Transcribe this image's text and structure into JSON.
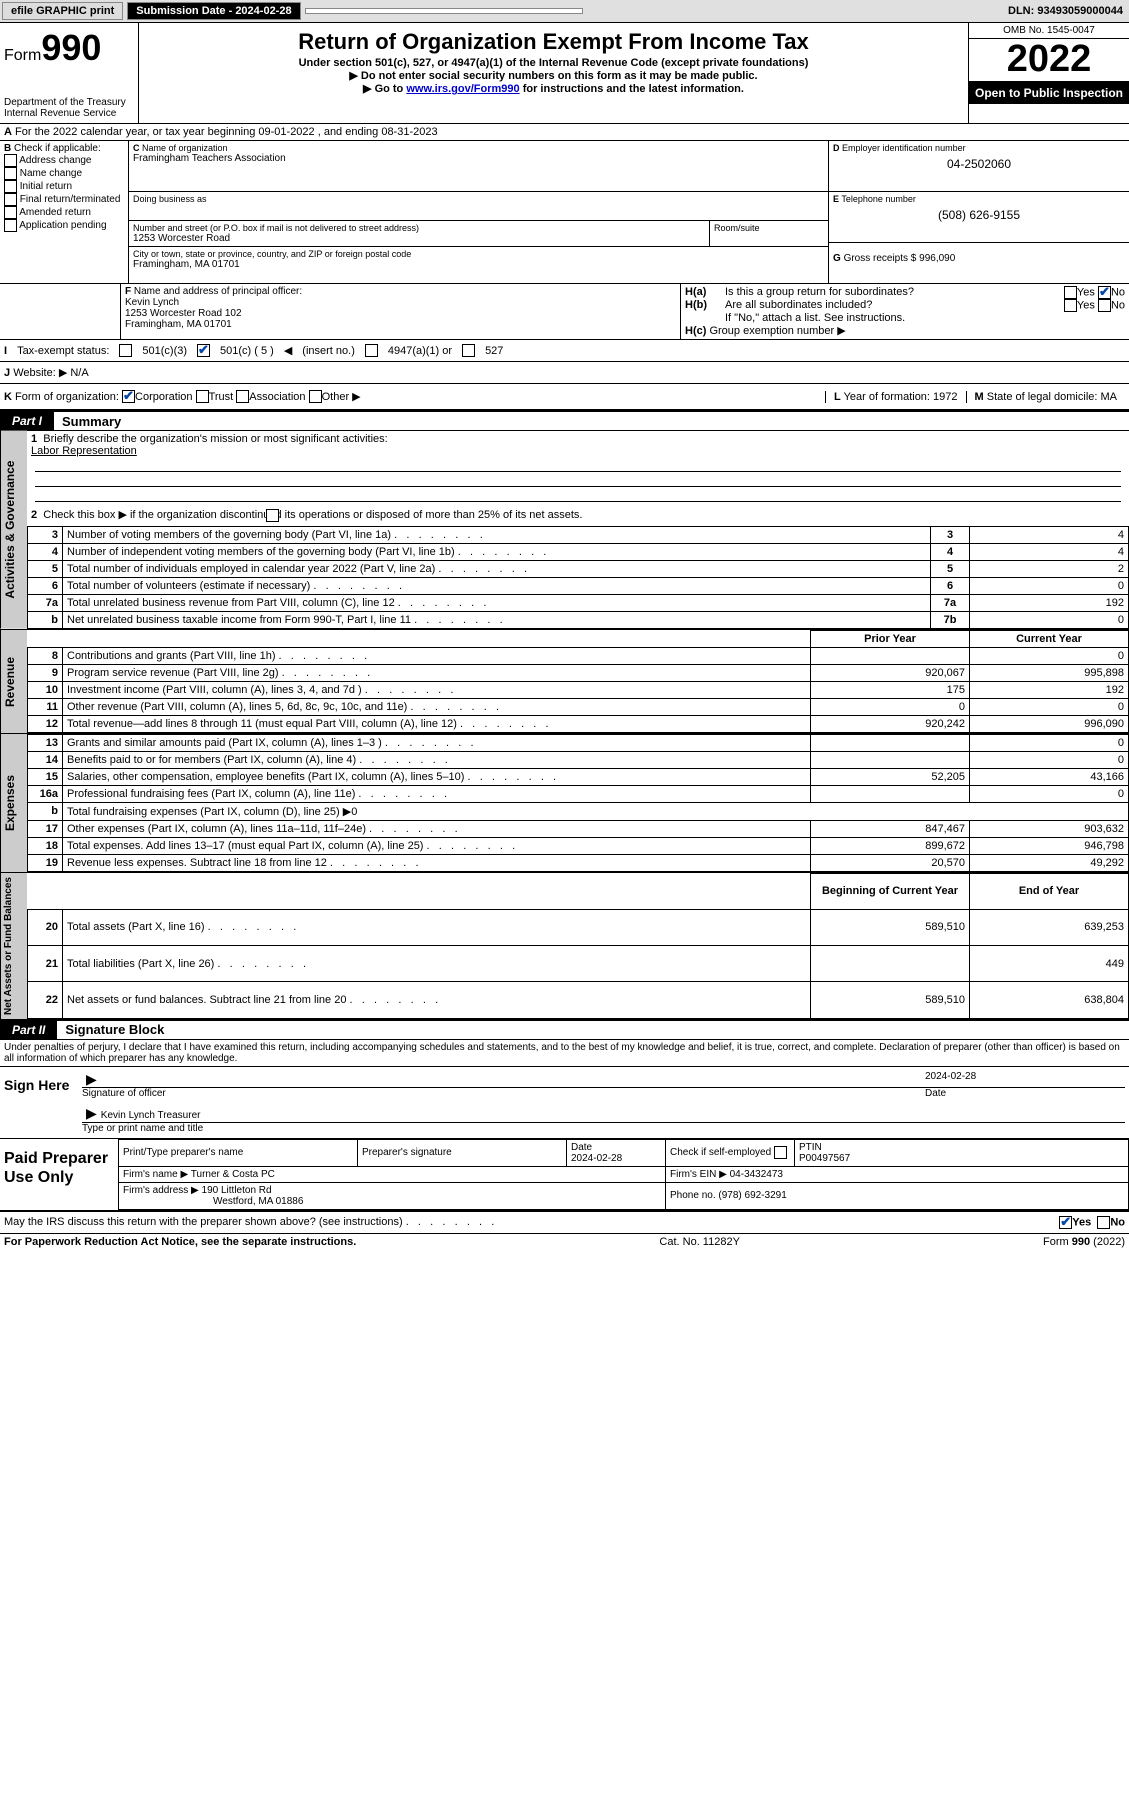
{
  "top": {
    "efile": "efile GRAPHIC print",
    "sub_label": "Submission Date - 2024-02-28",
    "dln": "DLN: 93493059000044"
  },
  "header": {
    "form_prefix": "Form",
    "form_num": "990",
    "dept": "Department of the Treasury",
    "irs": "Internal Revenue Service",
    "title": "Return of Organization Exempt From Income Tax",
    "sub": "Under section 501(c), 527, or 4947(a)(1) of the Internal Revenue Code (except private foundations)",
    "instr1": "Do not enter social security numbers on this form as it may be made public.",
    "instr2_pre": "Go to ",
    "instr2_link": "www.irs.gov/Form990",
    "instr2_post": " for instructions and the latest information.",
    "omb": "OMB No. 1545-0047",
    "year": "2022",
    "open": "Open to Public Inspection"
  },
  "a": {
    "text": "For the 2022 calendar year, or tax year beginning 09-01-2022   , and ending 08-31-2023"
  },
  "b": {
    "label": "Check if applicable:",
    "items": [
      "Address change",
      "Name change",
      "Initial return",
      "Final return/terminated",
      "Amended return",
      "Application pending"
    ]
  },
  "c": {
    "name_label": "Name of organization",
    "name": "Framingham Teachers Association",
    "dba_label": "Doing business as",
    "dba": "",
    "addr_label": "Number and street (or P.O. box if mail is not delivered to street address)",
    "room_label": "Room/suite",
    "addr": "1253 Worcester Road",
    "city_label": "City or town, state or province, country, and ZIP or foreign postal code",
    "city": "Framingham, MA  01701"
  },
  "d": {
    "label": "Employer identification number",
    "val": "04-2502060"
  },
  "e": {
    "label": "Telephone number",
    "val": "(508) 626-9155"
  },
  "g": {
    "label": "Gross receipts $",
    "val": "996,090"
  },
  "f": {
    "label": "Name and address of principal officer:",
    "name": "Kevin Lynch",
    "addr": "1253 Worcester Road 102",
    "city": "Framingham, MA  01701"
  },
  "h": {
    "a": "Is this a group return for subordinates?",
    "b": "Are all subordinates included?",
    "note": "If \"No,\" attach a list. See instructions.",
    "c": "Group exemption number ▶",
    "yes": "Yes",
    "no": "No"
  },
  "i": {
    "label": "Tax-exempt status:",
    "o1": "501(c)(3)",
    "o2_pre": "501(c) ( 5 )",
    "o2_post": "(insert no.)",
    "o3": "4947(a)(1) or",
    "o4": "527"
  },
  "j": {
    "label": "Website: ▶",
    "val": "N/A"
  },
  "k": {
    "label": "Form of organization:",
    "opts": [
      "Corporation",
      "Trust",
      "Association",
      "Other ▶"
    ]
  },
  "l": {
    "label": "Year of formation:",
    "val": "1972"
  },
  "m": {
    "label": "State of legal domicile:",
    "val": "MA"
  },
  "part1": {
    "tab": "Part I",
    "title": "Summary",
    "q1": "Briefly describe the organization's mission or most significant activities:",
    "mission": "Labor Representation",
    "q2": "Check this box ▶        if the organization discontinued its operations or disposed of more than 25% of its net assets.",
    "rows_single": [
      {
        "n": "3",
        "desc": "Number of voting members of the governing body (Part VI, line 1a)",
        "ln": "3",
        "val": "4"
      },
      {
        "n": "4",
        "desc": "Number of independent voting members of the governing body (Part VI, line 1b)",
        "ln": "4",
        "val": "4"
      },
      {
        "n": "5",
        "desc": "Total number of individuals employed in calendar year 2022 (Part V, line 2a)",
        "ln": "5",
        "val": "2"
      },
      {
        "n": "6",
        "desc": "Total number of volunteers (estimate if necessary)",
        "ln": "6",
        "val": "0"
      },
      {
        "n": "7a",
        "desc": "Total unrelated business revenue from Part VIII, column (C), line 12",
        "ln": "7a",
        "val": "192"
      },
      {
        "n": "b",
        "desc": "Net unrelated business taxable income from Form 990-T, Part I, line 11",
        "ln": "7b",
        "val": "0"
      }
    ],
    "col_prior": "Prior Year",
    "col_current": "Current Year",
    "rows_rev": [
      {
        "n": "8",
        "desc": "Contributions and grants (Part VIII, line 1h)",
        "p": "",
        "c": "0"
      },
      {
        "n": "9",
        "desc": "Program service revenue (Part VIII, line 2g)",
        "p": "920,067",
        "c": "995,898"
      },
      {
        "n": "10",
        "desc": "Investment income (Part VIII, column (A), lines 3, 4, and 7d )",
        "p": "175",
        "c": "192"
      },
      {
        "n": "11",
        "desc": "Other revenue (Part VIII, column (A), lines 5, 6d, 8c, 9c, 10c, and 11e)",
        "p": "0",
        "c": "0"
      },
      {
        "n": "12",
        "desc": "Total revenue—add lines 8 through 11 (must equal Part VIII, column (A), line 12)",
        "p": "920,242",
        "c": "996,090"
      }
    ],
    "rows_exp": [
      {
        "n": "13",
        "desc": "Grants and similar amounts paid (Part IX, column (A), lines 1–3 )",
        "p": "",
        "c": "0"
      },
      {
        "n": "14",
        "desc": "Benefits paid to or for members (Part IX, column (A), line 4)",
        "p": "",
        "c": "0"
      },
      {
        "n": "15",
        "desc": "Salaries, other compensation, employee benefits (Part IX, column (A), lines 5–10)",
        "p": "52,205",
        "c": "43,166"
      },
      {
        "n": "16a",
        "desc": "Professional fundraising fees (Part IX, column (A), line 11e)",
        "p": "",
        "c": "0"
      },
      {
        "n": "b",
        "desc": "Total fundraising expenses (Part IX, column (D), line 25) ▶0",
        "p": "—",
        "c": "—"
      },
      {
        "n": "17",
        "desc": "Other expenses (Part IX, column (A), lines 11a–11d, 11f–24e)",
        "p": "847,467",
        "c": "903,632"
      },
      {
        "n": "18",
        "desc": "Total expenses. Add lines 13–17 (must equal Part IX, column (A), line 25)",
        "p": "899,672",
        "c": "946,798"
      },
      {
        "n": "19",
        "desc": "Revenue less expenses. Subtract line 18 from line 12",
        "p": "20,570",
        "c": "49,292"
      }
    ],
    "col_beg": "Beginning of Current Year",
    "col_end": "End of Year",
    "rows_net": [
      {
        "n": "20",
        "desc": "Total assets (Part X, line 16)",
        "p": "589,510",
        "c": "639,253"
      },
      {
        "n": "21",
        "desc": "Total liabilities (Part X, line 26)",
        "p": "",
        "c": "449"
      },
      {
        "n": "22",
        "desc": "Net assets or fund balances. Subtract line 21 from line 20",
        "p": "589,510",
        "c": "638,804"
      }
    ]
  },
  "vtabs": {
    "gov": "Activities & Governance",
    "rev": "Revenue",
    "exp": "Expenses",
    "net": "Net Assets or Fund Balances"
  },
  "part2": {
    "tab": "Part II",
    "title": "Signature Block",
    "decl": "Under penalties of perjury, I declare that I have examined this return, including accompanying schedules and statements, and to the best of my knowledge and belief, it is true, correct, and complete. Declaration of preparer (other than officer) is based on all information of which preparer has any knowledge.",
    "sign_here": "Sign Here",
    "sig_officer": "Signature of officer",
    "sig_date": "Date",
    "date_val": "2024-02-28",
    "officer_name": "Kevin Lynch  Treasurer",
    "type_name": "Type or print name and title",
    "paid": "Paid Preparer Use Only",
    "prep_name_label": "Print/Type preparer's name",
    "prep_sig_label": "Preparer's signature",
    "prep_date_label": "Date",
    "prep_date": "2024-02-28",
    "self_emp": "Check        if self-employed",
    "ptin_label": "PTIN",
    "ptin": "P00497567",
    "firm_name_label": "Firm's name   ▶",
    "firm_name": "Turner & Costa PC",
    "firm_ein_label": "Firm's EIN ▶",
    "firm_ein": "04-3432473",
    "firm_addr_label": "Firm's address ▶",
    "firm_addr1": "190 Littleton Rd",
    "firm_addr2": "Westford, MA  01886",
    "phone_label": "Phone no.",
    "phone": "(978) 692-3291",
    "discuss": "May the IRS discuss this return with the preparer shown above? (see instructions)"
  },
  "footer": {
    "pra": "For Paperwork Reduction Act Notice, see the separate instructions.",
    "cat": "Cat. No. 11282Y",
    "form": "Form 990 (2022)"
  }
}
